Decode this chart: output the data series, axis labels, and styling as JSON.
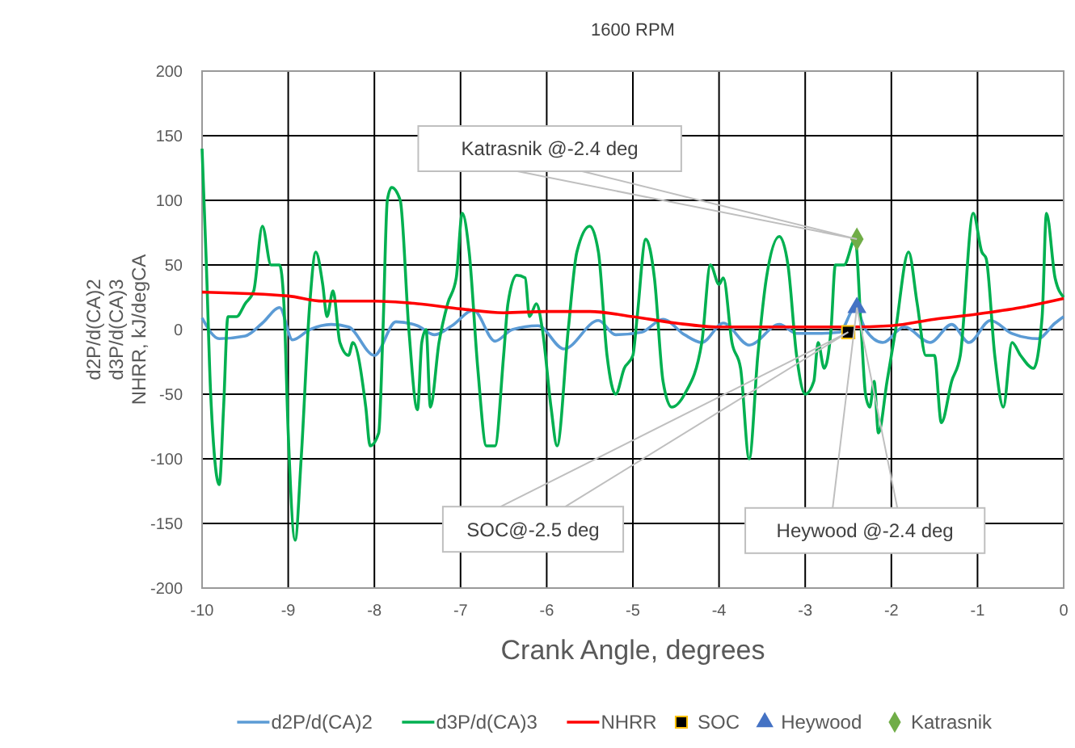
{
  "chart_data": {
    "type": "line",
    "title": "1600 RPM",
    "xlabel": "Crank Angle, degrees",
    "ylabel": "d2P/d(CA)2\nd3P/d(CA)3\nNHRR, kJ/degCA",
    "xlim": [
      -10,
      0
    ],
    "xticks": [
      -10,
      -9,
      -8,
      -7,
      -6,
      -5,
      -4,
      -3,
      -2,
      -1,
      0
    ],
    "ylim": [
      -200,
      200
    ],
    "yticks": [
      -200,
      -150,
      -100,
      -50,
      0,
      50,
      100,
      150,
      200
    ],
    "grid": true,
    "legend": "bottom",
    "line_style": "solid",
    "series": [
      {
        "name": "d2P/d(CA)2",
        "color": "#5b9bd5",
        "x": [
          -10,
          -9.8,
          -9.5,
          -9.3,
          -9.1,
          -8.95,
          -8.75,
          -8.5,
          -8.3,
          -8,
          -7.75,
          -7.5,
          -7.3,
          -7.1,
          -6.85,
          -6.6,
          -6.4,
          -6.1,
          -5.8,
          -5.4,
          -5.2,
          -4.9,
          -4.65,
          -4.4,
          -4.2,
          -3.95,
          -3.65,
          -3.3,
          -3.1,
          -2.85,
          -2.6,
          -2.42,
          -2.3,
          -2.1,
          -1.85,
          -1.55,
          -1.3,
          -1.1,
          -0.85,
          -0.6,
          -0.3,
          -0.1,
          0
        ],
        "values": [
          9,
          -7,
          -5,
          5,
          17,
          -8,
          0,
          4,
          2,
          -20,
          6,
          3,
          -4,
          3,
          15,
          -9,
          0,
          3,
          -15,
          7,
          -4,
          -2,
          8,
          -4,
          -10,
          5,
          -12,
          4,
          -3,
          -3,
          -2,
          17,
          0,
          -10,
          2,
          -10,
          4,
          -10,
          7,
          -3,
          -7,
          5,
          10
        ]
      },
      {
        "name": "d3P/d(CA)3",
        "color": "#00b050",
        "x": [
          -10,
          -9.95,
          -9.9,
          -9.8,
          -9.75,
          -9.7,
          -9.6,
          -9.5,
          -9.4,
          -9.3,
          -9.2,
          -9.1,
          -9.05,
          -9,
          -8.92,
          -8.85,
          -8.75,
          -8.68,
          -8.6,
          -8.55,
          -8.48,
          -8.4,
          -8.3,
          -8.25,
          -8.1,
          -8.05,
          -7.95,
          -7.9,
          -7.85,
          -7.8,
          -7.7,
          -7.6,
          -7.5,
          -7.45,
          -7.4,
          -7.35,
          -7.25,
          -7.15,
          -7.05,
          -6.98,
          -6.9,
          -6.8,
          -6.7,
          -6.6,
          -6.5,
          -6.45,
          -6.35,
          -6.25,
          -6.2,
          -6.12,
          -6.05,
          -5.95,
          -5.88,
          -5.75,
          -5.65,
          -5.5,
          -5.4,
          -5.3,
          -5.2,
          -5.1,
          -5,
          -4.95,
          -4.85,
          -4.75,
          -4.65,
          -4.55,
          -4.4,
          -4.2,
          -4.1,
          -4,
          -3.95,
          -3.85,
          -3.75,
          -3.65,
          -3.55,
          -3.45,
          -3.3,
          -3.2,
          -3.1,
          -3,
          -2.9,
          -2.85,
          -2.78,
          -2.7,
          -2.65,
          -2.55,
          -2.42,
          -2.35,
          -2.3,
          -2.25,
          -2.2,
          -2.15,
          -2.05,
          -1.95,
          -1.8,
          -1.7,
          -1.6,
          -1.5,
          -1.42,
          -1.3,
          -1.2,
          -1.05,
          -0.95,
          -0.9,
          -0.8,
          -0.7,
          -0.6,
          -0.5,
          -0.35,
          -0.25,
          -0.2,
          -0.1,
          0
        ],
        "values": [
          140,
          50,
          -50,
          -120,
          -60,
          10,
          10,
          20,
          30,
          80,
          50,
          50,
          20,
          -80,
          -163,
          -100,
          20,
          60,
          35,
          10,
          30,
          -10,
          -20,
          -10,
          -60,
          -90,
          -80,
          0,
          100,
          110,
          100,
          0,
          -62,
          -10,
          0,
          -60,
          -10,
          20,
          40,
          90,
          60,
          -30,
          -90,
          -90,
          -20,
          20,
          42,
          40,
          10,
          20,
          0,
          -60,
          -90,
          0,
          60,
          80,
          60,
          -20,
          -50,
          -30,
          -20,
          10,
          70,
          40,
          -40,
          -60,
          -50,
          -10,
          50,
          35,
          40,
          -10,
          -30,
          -100,
          -20,
          40,
          72,
          50,
          -20,
          -50,
          -40,
          -10,
          -30,
          0,
          50,
          50,
          70,
          0,
          -50,
          -60,
          -40,
          -80,
          -40,
          0,
          60,
          20,
          -20,
          -20,
          -72,
          -40,
          -20,
          90,
          60,
          55,
          -20,
          -60,
          -10,
          -20,
          -30,
          10,
          90,
          40,
          25
        ]
      },
      {
        "name": "NHRR",
        "color": "#ff0000",
        "x": [
          -10,
          -9,
          -8.6,
          -8,
          -7.5,
          -7,
          -6.5,
          -6,
          -5.5,
          -5,
          -4.5,
          -4,
          -3,
          -2.5,
          -2,
          -1.5,
          -1,
          -0.5,
          0
        ],
        "values": [
          29,
          26,
          22,
          22,
          20,
          16,
          13,
          14,
          14,
          10,
          5,
          2,
          2,
          2,
          3,
          8,
          12,
          17,
          24
        ]
      },
      {
        "name": "SOC",
        "type": "scatter",
        "marker": "square",
        "color": "#000000",
        "x": [
          -2.5
        ],
        "values": [
          -2
        ]
      },
      {
        "name": "Heywood",
        "type": "scatter",
        "marker": "triangle",
        "color": "#4472c4",
        "x": [
          -2.4
        ],
        "values": [
          17
        ]
      },
      {
        "name": "Katrasnik",
        "type": "scatter",
        "marker": "diamond",
        "color": "#70ad47",
        "x": [
          -2.4
        ],
        "values": [
          70
        ]
      }
    ],
    "annotations": [
      "Katrasnik @-2.4 deg",
      "SOC@-2.5 deg",
      "Heywood @-2.4 deg"
    ]
  }
}
